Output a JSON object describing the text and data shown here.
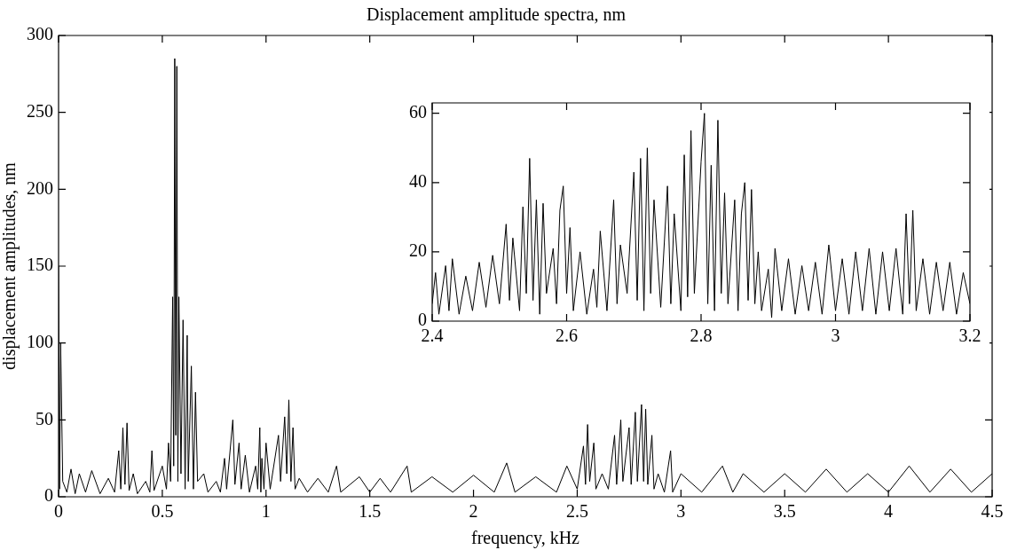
{
  "chart_data": [
    {
      "type": "line",
      "title": "Displacement amplitude spectra, nm",
      "xlabel": "frequency, kHz",
      "ylabel": "displacement amplitudes, nm",
      "color": "#000000",
      "marker": "none",
      "grid": false,
      "xlim": [
        0,
        4.5
      ],
      "ylim": [
        0,
        300
      ],
      "xticks": [
        0,
        0.5,
        1,
        1.5,
        2,
        2.5,
        3,
        3.5,
        4,
        4.5
      ],
      "yticks": [
        0,
        50,
        100,
        150,
        200,
        250,
        300
      ],
      "x": [
        0,
        0.005,
        0.01,
        0.02,
        0.04,
        0.06,
        0.08,
        0.1,
        0.13,
        0.16,
        0.2,
        0.24,
        0.27,
        0.29,
        0.3,
        0.31,
        0.32,
        0.33,
        0.34,
        0.36,
        0.38,
        0.42,
        0.44,
        0.45,
        0.46,
        0.5,
        0.52,
        0.53,
        0.54,
        0.55,
        0.555,
        0.56,
        0.565,
        0.57,
        0.575,
        0.58,
        0.59,
        0.6,
        0.61,
        0.62,
        0.625,
        0.64,
        0.65,
        0.66,
        0.67,
        0.7,
        0.72,
        0.76,
        0.78,
        0.8,
        0.81,
        0.84,
        0.85,
        0.87,
        0.88,
        0.9,
        0.92,
        0.95,
        0.96,
        0.97,
        0.975,
        0.98,
        0.99,
        1.0,
        1.02,
        1.06,
        1.07,
        1.09,
        1.1,
        1.11,
        1.12,
        1.13,
        1.14,
        1.16,
        1.2,
        1.25,
        1.3,
        1.34,
        1.36,
        1.45,
        1.5,
        1.55,
        1.6,
        1.68,
        1.7,
        1.8,
        1.9,
        2.0,
        2.1,
        2.16,
        2.2,
        2.3,
        2.4,
        2.45,
        2.5,
        2.53,
        2.54,
        2.55,
        2.56,
        2.58,
        2.59,
        2.62,
        2.65,
        2.68,
        2.69,
        2.71,
        2.72,
        2.75,
        2.76,
        2.78,
        2.79,
        2.81,
        2.82,
        2.83,
        2.84,
        2.86,
        2.87,
        2.89,
        2.92,
        2.95,
        2.96,
        3.0,
        3.1,
        3.2,
        3.25,
        3.3,
        3.4,
        3.5,
        3.6,
        3.7,
        3.8,
        3.9,
        4.0,
        4.1,
        4.2,
        4.3,
        4.4,
        4.5
      ],
      "values": [
        150,
        5,
        100,
        10,
        3,
        18,
        2,
        15,
        3,
        17,
        2,
        12,
        3,
        30,
        5,
        45,
        8,
        48,
        4,
        15,
        2,
        10,
        3,
        30,
        4,
        20,
        5,
        35,
        10,
        130,
        20,
        285,
        40,
        280,
        10,
        130,
        15,
        115,
        5,
        105,
        10,
        85,
        5,
        68,
        10,
        15,
        3,
        10,
        3,
        25,
        5,
        50,
        8,
        35,
        5,
        27,
        3,
        20,
        5,
        45,
        3,
        25,
        5,
        35,
        5,
        40,
        10,
        52,
        15,
        63,
        10,
        45,
        5,
        12,
        3,
        12,
        3,
        20,
        3,
        13,
        3,
        12,
        3,
        20,
        3,
        13,
        3,
        14,
        3,
        22,
        3,
        13,
        3,
        20,
        5,
        33,
        8,
        47,
        10,
        35,
        5,
        15,
        5,
        40,
        8,
        50,
        10,
        45,
        8,
        55,
        10,
        60,
        10,
        57,
        8,
        40,
        5,
        15,
        3,
        30,
        3,
        15,
        3,
        20,
        3,
        15,
        3,
        15,
        3,
        18,
        3,
        15,
        3,
        20,
        3,
        18,
        3,
        15
      ]
    },
    {
      "type": "line",
      "color": "#000000",
      "marker": "none",
      "grid": false,
      "xlim": [
        2.4,
        3.2
      ],
      "ylim": [
        0,
        63
      ],
      "xticks": [
        2.4,
        2.6,
        2.8,
        3,
        3.2
      ],
      "yticks": [
        0,
        20,
        40,
        60
      ],
      "x": [
        2.4,
        2.405,
        2.41,
        2.42,
        2.425,
        2.43,
        2.44,
        2.45,
        2.46,
        2.47,
        2.48,
        2.49,
        2.5,
        2.51,
        2.515,
        2.52,
        2.53,
        2.535,
        2.54,
        2.545,
        2.55,
        2.555,
        2.56,
        2.565,
        2.57,
        2.58,
        2.585,
        2.59,
        2.595,
        2.6,
        2.605,
        2.61,
        2.62,
        2.63,
        2.64,
        2.645,
        2.65,
        2.66,
        2.67,
        2.675,
        2.68,
        2.69,
        2.7,
        2.705,
        2.71,
        2.715,
        2.72,
        2.725,
        2.73,
        2.74,
        2.75,
        2.755,
        2.76,
        2.77,
        2.775,
        2.78,
        2.785,
        2.79,
        2.8,
        2.805,
        2.81,
        2.815,
        2.82,
        2.825,
        2.83,
        2.835,
        2.84,
        2.85,
        2.855,
        2.86,
        2.865,
        2.87,
        2.875,
        2.88,
        2.885,
        2.89,
        2.9,
        2.905,
        2.91,
        2.92,
        2.93,
        2.94,
        2.95,
        2.96,
        2.97,
        2.98,
        2.99,
        3.0,
        3.01,
        3.02,
        3.03,
        3.04,
        3.05,
        3.06,
        3.07,
        3.08,
        3.09,
        3.1,
        3.105,
        3.11,
        3.115,
        3.12,
        3.13,
        3.14,
        3.15,
        3.16,
        3.17,
        3.18,
        3.19,
        3.2
      ],
      "values": [
        5,
        14,
        2,
        16,
        3,
        18,
        2,
        13,
        3,
        17,
        4,
        19,
        5,
        28,
        6,
        24,
        3,
        33,
        8,
        47,
        6,
        35,
        2,
        34,
        8,
        21,
        5,
        32,
        39,
        8,
        27,
        3,
        20,
        2,
        15,
        4,
        26,
        3,
        35,
        5,
        22,
        8,
        43,
        6,
        47,
        3,
        50,
        8,
        35,
        4,
        39,
        5,
        31,
        3,
        48,
        7,
        55,
        8,
        46,
        60,
        5,
        45,
        3,
        58,
        8,
        37,
        5,
        35,
        3,
        31,
        40,
        6,
        38,
        5,
        20,
        3,
        15,
        1,
        21,
        3,
        18,
        2,
        16,
        3,
        17,
        2,
        22,
        3,
        18,
        2,
        20,
        3,
        21,
        2,
        20,
        3,
        21,
        2,
        31,
        5,
        32,
        3,
        18,
        2,
        17,
        3,
        17,
        2,
        14,
        5
      ]
    }
  ]
}
